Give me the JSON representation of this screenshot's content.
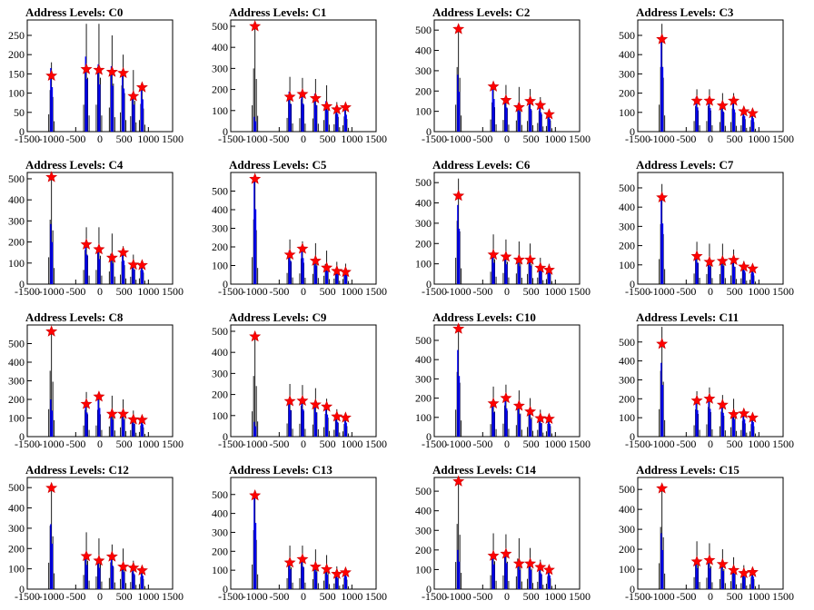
{
  "colors": {
    "frame": "#000000",
    "black_series": "#000000",
    "blue_series": "#0000ff",
    "marker_fill": "#ff0000",
    "marker_edge": "#cc0000"
  },
  "chart_data": [
    {
      "type": "bar",
      "title": "Address Levels: C0",
      "xlim": [
        -1500,
        1500
      ],
      "ylim": [
        0,
        290
      ],
      "xticks": [
        "-1500",
        "-1000",
        "-500",
        "0",
        "500",
        "1000",
        "1500"
      ],
      "yticks": [
        "0",
        "50",
        "100",
        "150",
        "200",
        "250"
      ],
      "levels": [
        -1000,
        -280,
        -20,
        250,
        480,
        690,
        870
      ],
      "black_peaks": [
        180,
        280,
        280,
        250,
        200,
        160,
        120
      ],
      "blue_peaks": [
        165,
        195,
        175,
        170,
        160,
        100,
        120
      ],
      "marker_values": [
        145,
        162,
        160,
        155,
        152,
        92,
        115
      ]
    },
    {
      "type": "bar",
      "title": "Address Levels: C1",
      "xlim": [
        -1500,
        1500
      ],
      "ylim": [
        0,
        530
      ],
      "xticks": [
        "-1500",
        "-1000",
        "-500",
        "0",
        "500",
        "1000",
        "1500"
      ],
      "yticks": [
        "0",
        "100",
        "200",
        "300",
        "400",
        "500"
      ],
      "levels": [
        -1000,
        -280,
        -20,
        250,
        480,
        690,
        870
      ],
      "black_peaks": [
        500,
        260,
        255,
        250,
        220,
        140,
        120
      ],
      "blue_peaks": [
        70,
        190,
        190,
        180,
        145,
        120,
        115
      ],
      "marker_values": [
        500,
        165,
        178,
        158,
        120,
        105,
        115
      ]
    },
    {
      "type": "bar",
      "title": "Address Levels: C2",
      "xlim": [
        -1500,
        1500
      ],
      "ylim": [
        0,
        550
      ],
      "xticks": [
        "-1500",
        "-1000",
        "-500",
        "0",
        "500",
        "1000",
        "1500"
      ],
      "yticks": [
        "0",
        "100",
        "200",
        "300",
        "400",
        "500"
      ],
      "levels": [
        -1000,
        -280,
        -20,
        250,
        480,
        690,
        870
      ],
      "black_peaks": [
        530,
        240,
        230,
        220,
        210,
        170,
        110
      ],
      "blue_peaks": [
        280,
        230,
        170,
        140,
        160,
        135,
        90
      ],
      "marker_values": [
        505,
        222,
        155,
        120,
        150,
        130,
        85
      ]
    },
    {
      "type": "bar",
      "title": "Address Levels: C3",
      "xlim": [
        -1500,
        1500
      ],
      "ylim": [
        0,
        580
      ],
      "xticks": [
        "-1500",
        "-1000",
        "-500",
        "0",
        "500",
        "1000",
        "1500"
      ],
      "yticks": [
        "0",
        "100",
        "200",
        "300",
        "400",
        "500"
      ],
      "levels": [
        -1000,
        -280,
        -20,
        250,
        480,
        690,
        870
      ],
      "black_peaks": [
        560,
        220,
        220,
        200,
        200,
        130,
        100
      ],
      "blue_peaks": [
        480,
        180,
        175,
        150,
        165,
        115,
        100
      ],
      "marker_values": [
        480,
        160,
        160,
        135,
        160,
        105,
        95
      ]
    },
    {
      "type": "bar",
      "title": "Address Levels: C4",
      "xlim": [
        -1500,
        1500
      ],
      "ylim": [
        0,
        530
      ],
      "xticks": [
        "-1500",
        "-1000",
        "-500",
        "0",
        "500",
        "1000",
        "1500"
      ],
      "yticks": [
        "0",
        "100",
        "200",
        "300",
        "400",
        "500"
      ],
      "levels": [
        -1000,
        -280,
        -20,
        250,
        480,
        690,
        870
      ],
      "black_peaks": [
        510,
        270,
        270,
        240,
        180,
        140,
        110
      ],
      "blue_peaks": [
        285,
        200,
        170,
        140,
        160,
        100,
        95
      ],
      "marker_values": [
        508,
        188,
        165,
        125,
        150,
        92,
        90
      ]
    },
    {
      "type": "bar",
      "title": "Address Levels: C5",
      "xlim": [
        -1500,
        1500
      ],
      "ylim": [
        0,
        600
      ],
      "xticks": [
        "-1500",
        "-1000",
        "-500",
        "0",
        "500",
        "1000",
        "1500"
      ],
      "yticks": [
        "0",
        "100",
        "200",
        "300",
        "400",
        "500"
      ],
      "levels": [
        -1000,
        -280,
        -20,
        250,
        480,
        690,
        870
      ],
      "black_peaks": [
        580,
        240,
        230,
        220,
        180,
        120,
        110
      ],
      "blue_peaks": [
        575,
        180,
        200,
        140,
        100,
        80,
        75
      ],
      "marker_values": [
        565,
        158,
        190,
        125,
        88,
        70,
        65
      ]
    },
    {
      "type": "bar",
      "title": "Address Levels: C6",
      "xlim": [
        -1500,
        1500
      ],
      "ylim": [
        0,
        550
      ],
      "xticks": [
        "-1500",
        "-1000",
        "-500",
        "0",
        "500",
        "1000",
        "1500"
      ],
      "yticks": [
        "0",
        "100",
        "200",
        "300",
        "400",
        "500"
      ],
      "levels": [
        -1000,
        -280,
        -20,
        250,
        480,
        690,
        870
      ],
      "black_peaks": [
        520,
        245,
        220,
        210,
        200,
        130,
        100
      ],
      "blue_peaks": [
        390,
        150,
        140,
        125,
        130,
        90,
        80
      ],
      "marker_values": [
        435,
        145,
        135,
        120,
        120,
        80,
        70
      ]
    },
    {
      "type": "bar",
      "title": "Address Levels: C7",
      "xlim": [
        -1500,
        1500
      ],
      "ylim": [
        0,
        580
      ],
      "xticks": [
        "-1500",
        "-1000",
        "-500",
        "0",
        "500",
        "1000",
        "1500"
      ],
      "yticks": [
        "0",
        "100",
        "200",
        "300",
        "400",
        "500"
      ],
      "levels": [
        -1000,
        -280,
        -20,
        250,
        480,
        690,
        870
      ],
      "black_peaks": [
        520,
        220,
        210,
        210,
        180,
        120,
        90
      ],
      "blue_peaks": [
        450,
        160,
        130,
        135,
        130,
        100,
        85
      ],
      "marker_values": [
        450,
        145,
        115,
        120,
        125,
        90,
        80
      ]
    },
    {
      "type": "bar",
      "title": "Address Levels: C8",
      "xlim": [
        -1500,
        1500
      ],
      "ylim": [
        0,
        600
      ],
      "xticks": [
        "-1500",
        "-1000",
        "-500",
        "0",
        "500",
        "1000",
        "1500"
      ],
      "yticks": [
        "0",
        "100",
        "200",
        "300",
        "400",
        "500"
      ],
      "levels": [
        -1000,
        -280,
        -20,
        250,
        480,
        690,
        870
      ],
      "black_peaks": [
        590,
        240,
        240,
        220,
        200,
        140,
        100
      ],
      "blue_peaks": [
        200,
        185,
        220,
        130,
        130,
        100,
        95
      ],
      "marker_values": [
        565,
        175,
        215,
        122,
        122,
        92,
        90
      ]
    },
    {
      "type": "bar",
      "title": "Address Levels: C9",
      "xlim": [
        -1500,
        1500
      ],
      "ylim": [
        0,
        530
      ],
      "xticks": [
        "-1500",
        "-1000",
        "-500",
        "0",
        "500",
        "1000",
        "1500"
      ],
      "yticks": [
        "0",
        "100",
        "200",
        "300",
        "400",
        "500"
      ],
      "levels": [
        -1000,
        -280,
        -20,
        250,
        480,
        690,
        870
      ],
      "black_peaks": [
        480,
        250,
        245,
        230,
        180,
        130,
        100
      ],
      "blue_peaks": [
        70,
        180,
        185,
        165,
        150,
        100,
        95
      ],
      "marker_values": [
        475,
        168,
        170,
        152,
        142,
        95,
        90
      ]
    },
    {
      "type": "bar",
      "title": "Address Levels: C10",
      "xlim": [
        -1500,
        1500
      ],
      "ylim": [
        0,
        580
      ],
      "xticks": [
        "-1500",
        "-1000",
        "-500",
        "0",
        "500",
        "1000",
        "1500"
      ],
      "yticks": [
        "0",
        "100",
        "200",
        "300",
        "400",
        "500"
      ],
      "levels": [
        -1000,
        -280,
        -20,
        250,
        480,
        690,
        870
      ],
      "black_peaks": [
        560,
        260,
        270,
        240,
        200,
        140,
        110
      ],
      "blue_peaks": [
        450,
        180,
        210,
        165,
        130,
        100,
        95
      ],
      "marker_values": [
        560,
        172,
        200,
        160,
        130,
        95,
        92
      ]
    },
    {
      "type": "bar",
      "title": "Address Levels: C11",
      "xlim": [
        -1500,
        1500
      ],
      "ylim": [
        0,
        590
      ],
      "xticks": [
        "-1500",
        "-1000",
        "-500",
        "0",
        "500",
        "1000",
        "1500"
      ],
      "yticks": [
        "0",
        "100",
        "200",
        "300",
        "400",
        "500"
      ],
      "levels": [
        -1000,
        -280,
        -20,
        250,
        480,
        690,
        870
      ],
      "black_peaks": [
        580,
        240,
        260,
        220,
        200,
        140,
        110
      ],
      "blue_peaks": [
        390,
        200,
        210,
        180,
        130,
        130,
        110
      ],
      "marker_values": [
        490,
        190,
        200,
        168,
        118,
        122,
        100
      ]
    },
    {
      "type": "bar",
      "title": "Address Levels: C12",
      "xlim": [
        -1500,
        1500
      ],
      "ylim": [
        0,
        550
      ],
      "xticks": [
        "-1500",
        "-1000",
        "-500",
        "0",
        "500",
        "1000",
        "1500"
      ],
      "yticks": [
        "0",
        "100",
        "200",
        "300",
        "400",
        "500"
      ],
      "levels": [
        -1000,
        -280,
        -20,
        250,
        480,
        690,
        870
      ],
      "black_peaks": [
        520,
        280,
        250,
        220,
        200,
        140,
        100
      ],
      "blue_peaks": [
        320,
        170,
        150,
        165,
        120,
        110,
        95
      ],
      "marker_values": [
        498,
        162,
        140,
        160,
        110,
        105,
        92
      ]
    },
    {
      "type": "bar",
      "title": "Address Levels: C13",
      "xlim": [
        -1500,
        1500
      ],
      "ylim": [
        0,
        590
      ],
      "xticks": [
        "-1500",
        "-1000",
        "-500",
        "0",
        "500",
        "1000",
        "1500"
      ],
      "yticks": [
        "0",
        "100",
        "200",
        "300",
        "400",
        "500"
      ],
      "levels": [
        -1000,
        -280,
        -20,
        250,
        480,
        690,
        870
      ],
      "black_peaks": [
        520,
        230,
        230,
        210,
        180,
        120,
        100
      ],
      "blue_peaks": [
        500,
        150,
        170,
        130,
        110,
        85,
        95
      ],
      "marker_values": [
        495,
        140,
        158,
        118,
        105,
        80,
        88
      ]
    },
    {
      "type": "bar",
      "title": "Address Levels: C14",
      "xlim": [
        -1500,
        1500
      ],
      "ylim": [
        0,
        570
      ],
      "xticks": [
        "-1500",
        "-1000",
        "-500",
        "0",
        "500",
        "1000",
        "1500"
      ],
      "yticks": [
        "0",
        "100",
        "200",
        "300",
        "400",
        "500"
      ],
      "levels": [
        -1000,
        -280,
        -20,
        250,
        480,
        690,
        870
      ],
      "black_peaks": [
        555,
        285,
        280,
        260,
        210,
        150,
        110
      ],
      "blue_peaks": [
        200,
        180,
        190,
        140,
        140,
        115,
        100
      ],
      "marker_values": [
        550,
        170,
        180,
        130,
        130,
        112,
        98
      ]
    },
    {
      "type": "bar",
      "title": "Address Levels: C15",
      "xlim": [
        -1500,
        1500
      ],
      "ylim": [
        0,
        560
      ],
      "xticks": [
        "-1500",
        "-1000",
        "-500",
        "0",
        "500",
        "1000",
        "1500"
      ],
      "yticks": [
        "0",
        "100",
        "200",
        "300",
        "400",
        "500"
      ],
      "levels": [
        -1000,
        -280,
        -20,
        250,
        480,
        690,
        870
      ],
      "black_peaks": [
        520,
        240,
        230,
        200,
        160,
        120,
        100
      ],
      "blue_peaks": [
        280,
        150,
        150,
        130,
        110,
        90,
        90
      ],
      "marker_values": [
        505,
        138,
        145,
        125,
        95,
        80,
        85
      ]
    }
  ]
}
